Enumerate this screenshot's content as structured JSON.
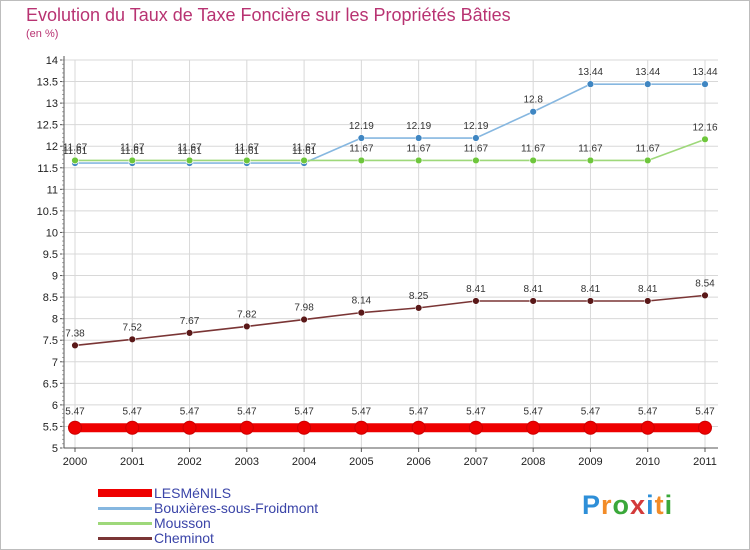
{
  "title": "Evolution du Taux de Taxe Foncière sur les Propriétés Bâties",
  "subtitle": "(en %)",
  "logo": {
    "letters": [
      "P",
      "r",
      "o",
      "x",
      "i",
      "t",
      "i"
    ],
    "colors": [
      "#2e8fd8",
      "#f28c28",
      "#3aa83a",
      "#d33a3a",
      "#2e8fd8",
      "#f28c28",
      "#3aa83a"
    ]
  },
  "chart_data": {
    "type": "line",
    "title": "Evolution du Taux de Taxe Foncière sur les Propriétés Bâties",
    "ylabel": "(en %)",
    "xlabel": "",
    "x": [
      "2000",
      "2001",
      "2002",
      "2003",
      "2004",
      "2005",
      "2006",
      "2007",
      "2008",
      "2009",
      "2010",
      "2011"
    ],
    "ylim": [
      5,
      14
    ],
    "yticks": [
      "5",
      "5.5",
      "6",
      "6.5",
      "7",
      "7.5",
      "8",
      "8.5",
      "9",
      "9.5",
      "10",
      "10.5",
      "11",
      "11.5",
      "12",
      "12.5",
      "13",
      "13.5",
      "14"
    ],
    "grid": true,
    "legend_position": "bottom-left",
    "series": [
      {
        "name": "LESMéNILS",
        "color": "#ee0000",
        "values": [
          5.47,
          5.47,
          5.47,
          5.47,
          5.47,
          5.47,
          5.47,
          5.47,
          5.47,
          5.47,
          5.47,
          5.47
        ],
        "labels": [
          "5.47",
          "5.47",
          "5.47",
          "5.47",
          "5.47",
          "5.47",
          "5.47",
          "5.47",
          "5.47",
          "5.47",
          "5.47",
          "5.47"
        ]
      },
      {
        "name": "Bouxières-sous-Froidmont",
        "color": "#86b7e0",
        "marker": "#3f86c2",
        "values": [
          11.61,
          11.61,
          11.61,
          11.61,
          11.61,
          12.19,
          12.19,
          12.19,
          12.8,
          13.44,
          13.44,
          13.44
        ],
        "labels": [
          "11.61",
          "11.61",
          "11.61",
          "11.61",
          "11.61",
          "12.19",
          "12.19",
          "12.19",
          "12.8",
          "13.44",
          "13.44",
          "13.44"
        ]
      },
      {
        "name": "Mousson",
        "color": "#9ed87a",
        "marker": "#6ec63c",
        "values": [
          11.67,
          11.67,
          11.67,
          11.67,
          11.67,
          11.67,
          11.67,
          11.67,
          11.67,
          11.67,
          11.67,
          12.16
        ],
        "labels": [
          "11.67",
          "11.67",
          "11.67",
          "11.67",
          "11.67",
          "11.67",
          "11.67",
          "11.67",
          "11.67",
          "11.67",
          "11.67",
          "12.16"
        ]
      },
      {
        "name": "Cheminot",
        "color": "#7a3535",
        "marker": "#5a1818",
        "values": [
          7.38,
          7.52,
          7.67,
          7.82,
          7.98,
          8.14,
          8.25,
          8.41,
          8.41,
          8.41,
          8.41,
          8.54
        ],
        "labels": [
          "7.38",
          "7.52",
          "7.67",
          "7.82",
          "7.98",
          "8.14",
          "8.25",
          "8.41",
          "8.41",
          "8.41",
          "8.41",
          "8.54"
        ]
      }
    ]
  }
}
